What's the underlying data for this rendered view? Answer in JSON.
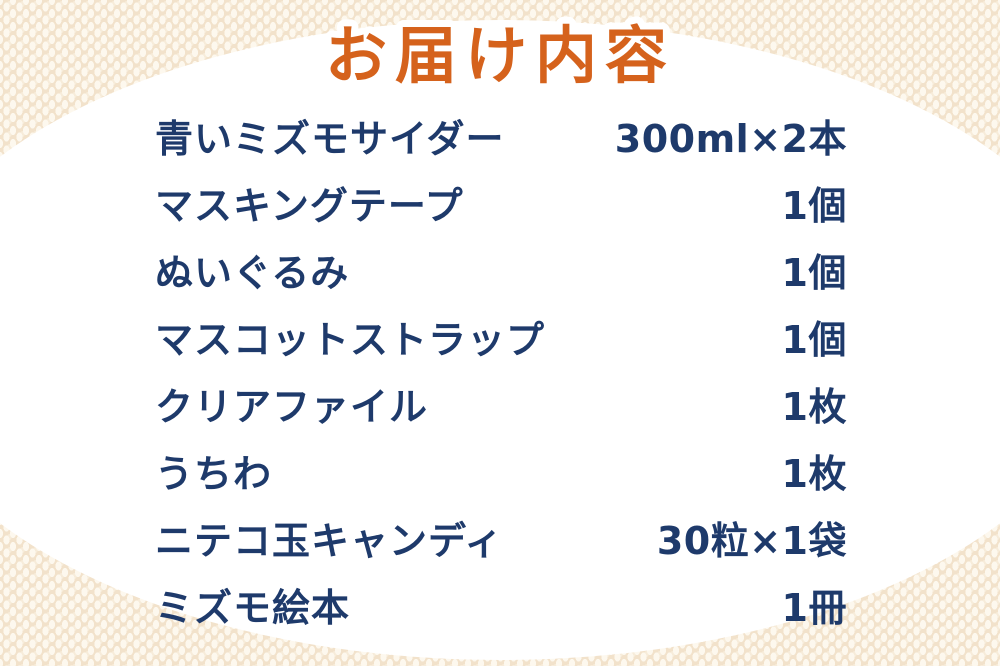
{
  "title": "お届け内容",
  "colors": {
    "accent_orange": "#d5621c",
    "text_navy": "#1e3a6b",
    "background_beige": "#f2e2cb",
    "pattern_cream": "#fdf8ee",
    "panel_white": "#ffffff"
  },
  "items": [
    {
      "name": "青いミズモサイダー",
      "qty": "300ml×2本"
    },
    {
      "name": "マスキングテープ",
      "qty": "1個"
    },
    {
      "name": "ぬいぐるみ",
      "qty": "1個"
    },
    {
      "name": "マスコットストラップ",
      "qty": "1個"
    },
    {
      "name": "クリアファイル",
      "qty": "1枚"
    },
    {
      "name": "うちわ",
      "qty": "1枚"
    },
    {
      "name": "ニテコ玉キャンディ",
      "qty": "30粒×1袋"
    },
    {
      "name": "ミズモ絵本",
      "qty": "1冊"
    }
  ]
}
